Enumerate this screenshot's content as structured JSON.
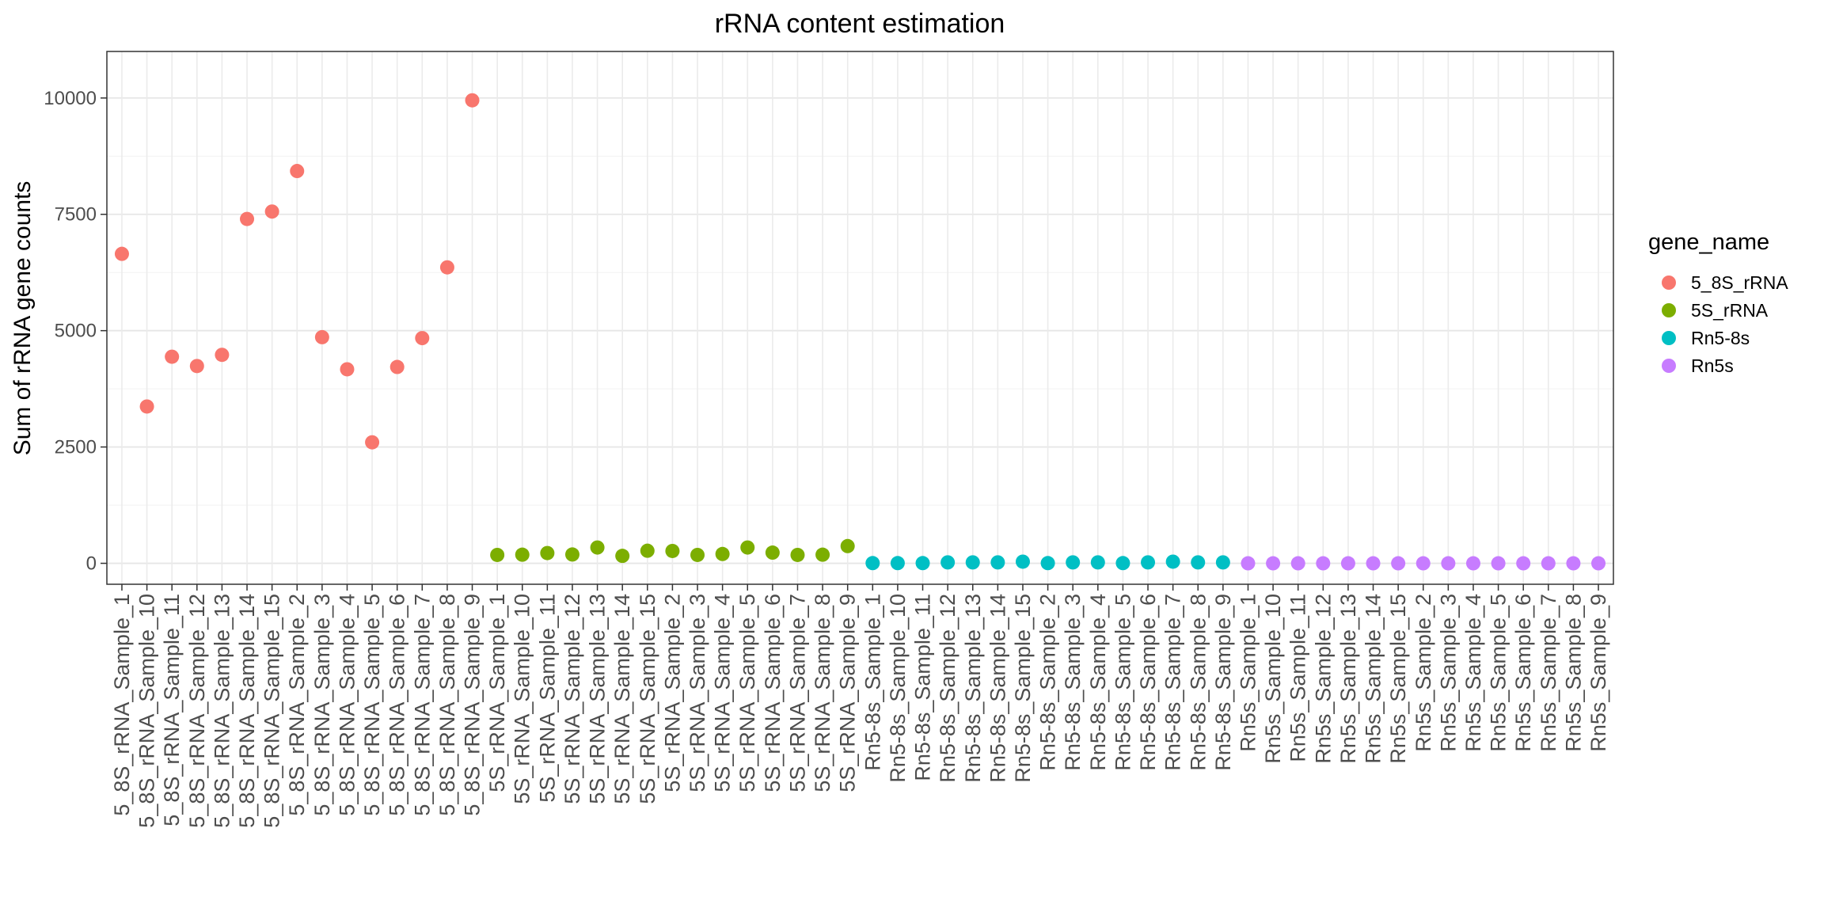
{
  "chart_data": {
    "type": "scatter",
    "title": "rRNA content estimation",
    "xlabel": "",
    "ylabel": "Sum of rRNA gene counts",
    "ylim": [
      -450,
      11000
    ],
    "yticks": [
      0,
      2500,
      5000,
      7500,
      10000
    ],
    "grid": true,
    "legend": {
      "title": "gene_name",
      "placement": "right",
      "entries": [
        {
          "label": "5_8S_rRNA",
          "color": "#F8766D"
        },
        {
          "label": "5S_rRNA",
          "color": "#7CAE00"
        },
        {
          "label": "Rn5-8s",
          "color": "#00BFC4"
        },
        {
          "label": "Rn5s",
          "color": "#C77CFF"
        }
      ]
    },
    "series": [
      {
        "name": "5_8S_rRNA",
        "color": "#F8766D",
        "x": [
          "5_8S_rRNA_Sample_1",
          "5_8S_rRNA_Sample_10",
          "5_8S_rRNA_Sample_11",
          "5_8S_rRNA_Sample_12",
          "5_8S_rRNA_Sample_13",
          "5_8S_rRNA_Sample_14",
          "5_8S_rRNA_Sample_15",
          "5_8S_rRNA_Sample_2",
          "5_8S_rRNA_Sample_3",
          "5_8S_rRNA_Sample_4",
          "5_8S_rRNA_Sample_5",
          "5_8S_rRNA_Sample_6",
          "5_8S_rRNA_Sample_7",
          "5_8S_rRNA_Sample_8",
          "5_8S_rRNA_Sample_9"
        ],
        "values": [
          6650,
          3370,
          4440,
          4240,
          4480,
          7400,
          7560,
          8430,
          4860,
          4170,
          2600,
          4220,
          4840,
          6360,
          9950
        ]
      },
      {
        "name": "5S_rRNA",
        "color": "#7CAE00",
        "x": [
          "5S_rRNA_Sample_1",
          "5S_rRNA_Sample_10",
          "5S_rRNA_Sample_11",
          "5S_rRNA_Sample_12",
          "5S_rRNA_Sample_13",
          "5S_rRNA_Sample_14",
          "5S_rRNA_Sample_15",
          "5S_rRNA_Sample_2",
          "5S_rRNA_Sample_3",
          "5S_rRNA_Sample_4",
          "5S_rRNA_Sample_5",
          "5S_rRNA_Sample_6",
          "5S_rRNA_Sample_7",
          "5S_rRNA_Sample_8",
          "5S_rRNA_Sample_9"
        ],
        "values": [
          180,
          185,
          220,
          190,
          340,
          160,
          270,
          265,
          180,
          200,
          340,
          230,
          180,
          185,
          370
        ]
      },
      {
        "name": "Rn5-8s",
        "color": "#00BFC4",
        "x": [
          "Rn5-8s_Sample_1",
          "Rn5-8s_Sample_10",
          "Rn5-8s_Sample_11",
          "Rn5-8s_Sample_12",
          "Rn5-8s_Sample_13",
          "Rn5-8s_Sample_14",
          "Rn5-8s_Sample_15",
          "Rn5-8s_Sample_2",
          "Rn5-8s_Sample_3",
          "Rn5-8s_Sample_4",
          "Rn5-8s_Sample_5",
          "Rn5-8s_Sample_6",
          "Rn5-8s_Sample_7",
          "Rn5-8s_Sample_8",
          "Rn5-8s_Sample_9"
        ],
        "values": [
          5,
          5,
          5,
          20,
          20,
          20,
          35,
          5,
          20,
          20,
          5,
          20,
          35,
          20,
          20
        ]
      },
      {
        "name": "Rn5s",
        "color": "#C77CFF",
        "x": [
          "Rn5s_Sample_1",
          "Rn5s_Sample_10",
          "Rn5s_Sample_11",
          "Rn5s_Sample_12",
          "Rn5s_Sample_13",
          "Rn5s_Sample_14",
          "Rn5s_Sample_15",
          "Rn5s_Sample_2",
          "Rn5s_Sample_3",
          "Rn5s_Sample_4",
          "Rn5s_Sample_5",
          "Rn5s_Sample_6",
          "Rn5s_Sample_7",
          "Rn5s_Sample_8",
          "Rn5s_Sample_9"
        ],
        "values": [
          0,
          0,
          0,
          0,
          0,
          0,
          0,
          0,
          0,
          0,
          0,
          0,
          0,
          0,
          0
        ]
      }
    ]
  }
}
